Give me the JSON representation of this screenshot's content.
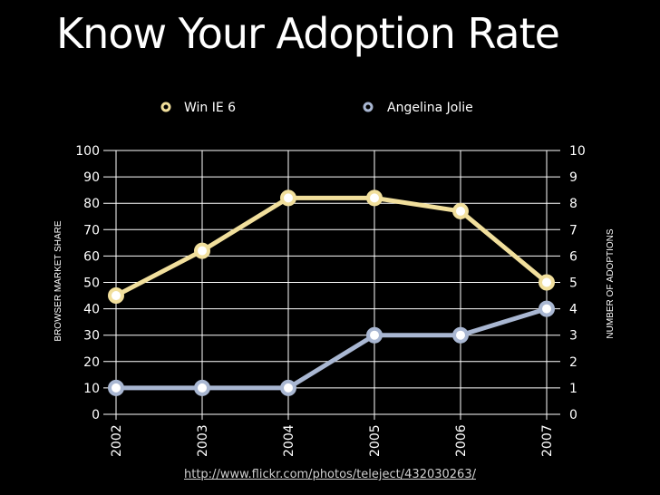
{
  "title": "Know Your Adoption Rate",
  "source_link": "http://www.flickr.com/photos/teleject/432030263/",
  "chart_data": {
    "type": "line",
    "categories": [
      "2002",
      "2003",
      "2004",
      "2005",
      "2006",
      "2007"
    ],
    "series": [
      {
        "name": "Win IE 6",
        "axis": "left",
        "values": [
          45,
          62,
          82,
          82,
          77,
          50
        ],
        "color": "#f1df9c"
      },
      {
        "name": "Angelina Jolie",
        "axis": "right",
        "values": [
          1,
          1,
          1,
          3,
          3,
          4
        ],
        "color": "#a9b7d2"
      }
    ],
    "ylabel": "BROWSER MARKET SHARE",
    "ylabel_right": "NUMBER OF ADOPTIONS",
    "ylim": [
      0,
      100
    ],
    "ylim_right": [
      0,
      10
    ],
    "left_ticks": [
      "0",
      "10",
      "20",
      "30",
      "40",
      "50",
      "60",
      "70",
      "80",
      "90",
      "100"
    ],
    "right_ticks": [
      "0",
      "1",
      "2",
      "3",
      "4",
      "5",
      "6",
      "7",
      "8",
      "9",
      "10"
    ],
    "grid": true,
    "legend_position": "top"
  }
}
